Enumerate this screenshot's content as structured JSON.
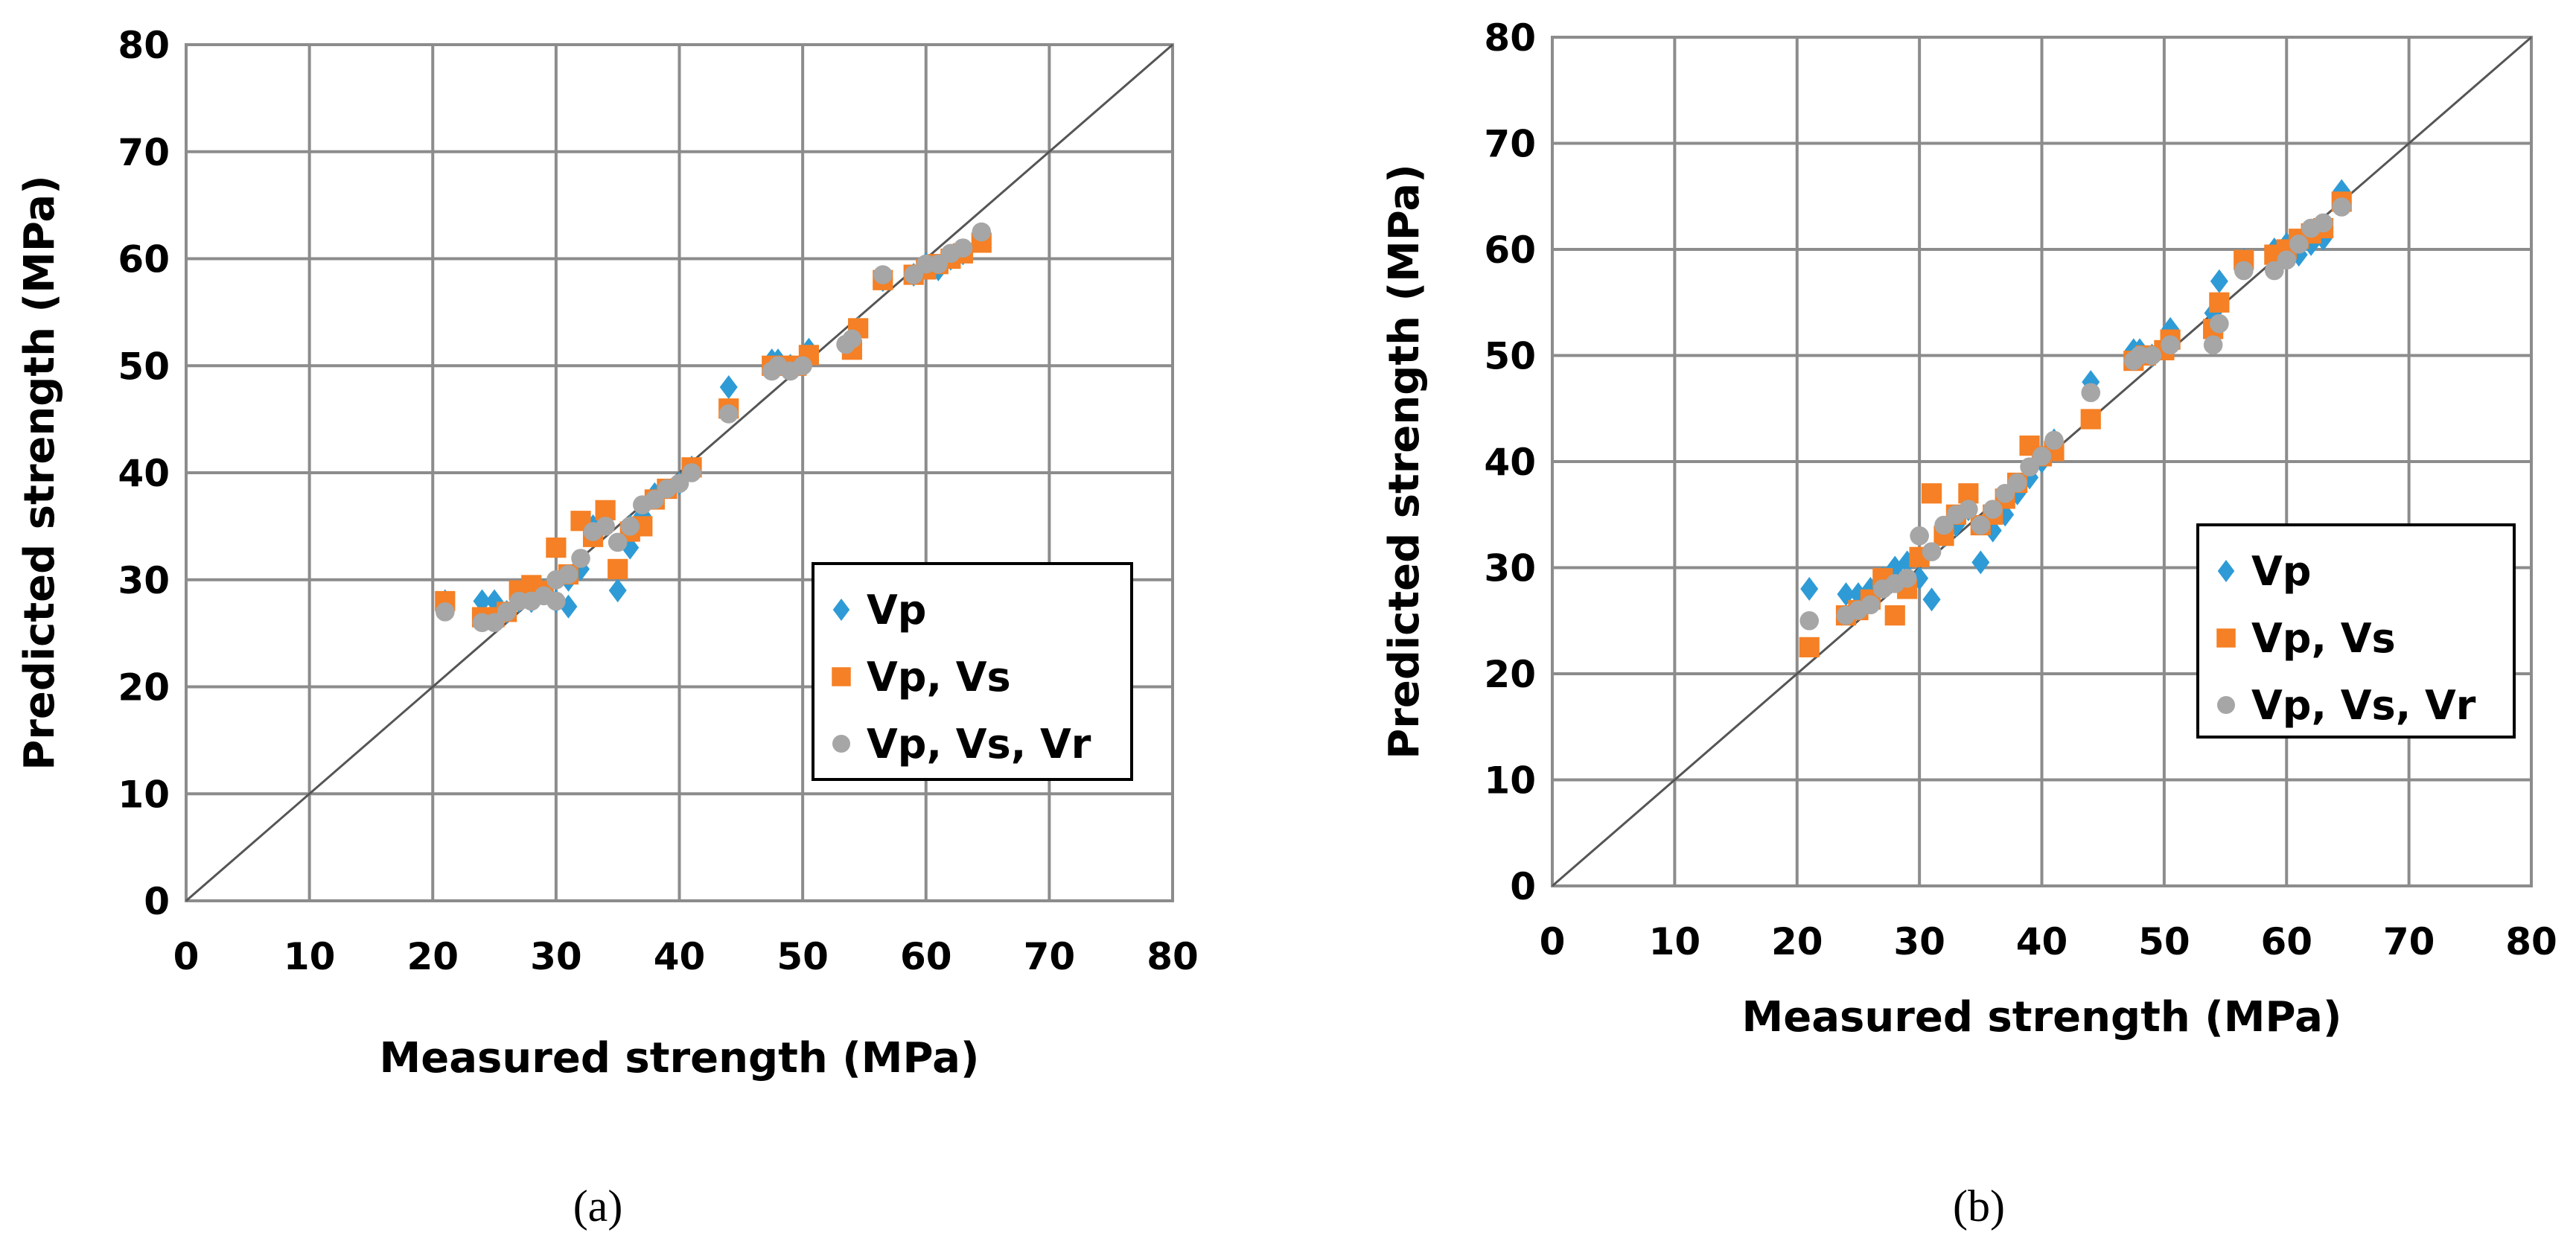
{
  "chart_data": [
    {
      "type": "scatter",
      "panel_label": "(a)",
      "title": "",
      "xlabel": "Measured strength (MPa)",
      "ylabel": "Predicted strength (MPa)",
      "xlim": [
        0,
        80
      ],
      "ylim": [
        0,
        80
      ],
      "ticks": [
        0,
        10,
        20,
        30,
        40,
        50,
        60,
        70,
        80
      ],
      "grid": true,
      "reference_line": "y = x",
      "legend_position": "center-right",
      "series": [
        {
          "name": "Vp",
          "marker": "diamond",
          "color": "#2E9BD6",
          "points": [
            [
              21,
              28
            ],
            [
              24,
              28
            ],
            [
              25,
              28
            ],
            [
              26,
              27
            ],
            [
              27,
              28
            ],
            [
              28,
              28
            ],
            [
              29,
              29
            ],
            [
              30,
              28
            ],
            [
              31,
              27.5
            ],
            [
              31,
              30
            ],
            [
              32,
              31
            ],
            [
              33,
              35
            ],
            [
              34,
              36
            ],
            [
              35,
              29
            ],
            [
              36,
              33
            ],
            [
              36,
              35
            ],
            [
              37,
              36
            ],
            [
              38,
              38
            ],
            [
              40,
              39
            ],
            [
              41,
              40.5
            ],
            [
              44,
              48
            ],
            [
              47.5,
              50.5
            ],
            [
              48,
              50.5
            ],
            [
              49,
              50
            ],
            [
              50.5,
              51.5
            ],
            [
              54,
              52.5
            ],
            [
              54.5,
              53.5
            ],
            [
              56.5,
              58
            ],
            [
              59,
              58.5
            ],
            [
              60,
              59.5
            ],
            [
              61,
              59
            ],
            [
              62,
              60
            ],
            [
              63,
              60.5
            ],
            [
              64.5,
              62
            ]
          ]
        },
        {
          "name": "Vp, Vs",
          "marker": "square",
          "color": "#F58025",
          "points": [
            [
              21,
              28
            ],
            [
              24,
              26.5
            ],
            [
              25,
              26.5
            ],
            [
              26,
              27
            ],
            [
              27,
              29
            ],
            [
              28,
              29.5
            ],
            [
              29,
              29
            ],
            [
              30,
              33
            ],
            [
              31,
              30.5
            ],
            [
              32,
              35.5
            ],
            [
              33,
              34
            ],
            [
              34,
              36.5
            ],
            [
              35,
              31
            ],
            [
              36,
              34.5
            ],
            [
              37,
              35
            ],
            [
              38,
              37.5
            ],
            [
              39,
              38.5
            ],
            [
              41,
              40.5
            ],
            [
              44,
              46
            ],
            [
              47.5,
              50
            ],
            [
              48.5,
              50
            ],
            [
              49.5,
              50
            ],
            [
              50.5,
              51
            ],
            [
              54,
              51.5
            ],
            [
              54.5,
              53.5
            ],
            [
              56.5,
              58
            ],
            [
              59,
              58.5
            ],
            [
              60,
              59
            ],
            [
              61,
              59.5
            ],
            [
              62,
              60
            ],
            [
              63,
              60.5
            ],
            [
              64.5,
              61.5
            ]
          ]
        },
        {
          "name": "Vp, Vs, Vr",
          "marker": "circle",
          "color": "#A6A6A6",
          "points": [
            [
              21,
              27
            ],
            [
              24,
              26
            ],
            [
              25,
              26
            ],
            [
              26,
              27
            ],
            [
              27,
              28
            ],
            [
              28,
              28
            ],
            [
              29,
              28.5
            ],
            [
              30,
              28
            ],
            [
              30,
              30
            ],
            [
              31,
              30.5
            ],
            [
              32,
              32
            ],
            [
              33,
              34.5
            ],
            [
              34,
              35
            ],
            [
              35,
              33.5
            ],
            [
              36,
              35
            ],
            [
              37,
              37
            ],
            [
              38,
              37.5
            ],
            [
              39,
              38.5
            ],
            [
              40,
              39
            ],
            [
              41,
              40
            ],
            [
              44,
              45.5
            ],
            [
              47.5,
              49.5
            ],
            [
              48,
              50
            ],
            [
              49,
              49.5
            ],
            [
              50,
              50
            ],
            [
              53.5,
              52
            ],
            [
              54,
              52.5
            ],
            [
              56.5,
              58.5
            ],
            [
              59,
              58.5
            ],
            [
              60,
              59.5
            ],
            [
              61,
              59.5
            ],
            [
              62,
              60.5
            ],
            [
              63,
              61
            ],
            [
              64.5,
              62.5
            ]
          ]
        }
      ]
    },
    {
      "type": "scatter",
      "panel_label": "(b)",
      "title": "",
      "xlabel": "Measured strength (MPa)",
      "ylabel": "Predicted strength (MPa)",
      "xlim": [
        0,
        80
      ],
      "ylim": [
        0,
        80
      ],
      "ticks": [
        0,
        10,
        20,
        30,
        40,
        50,
        60,
        70,
        80
      ],
      "grid": true,
      "reference_line": "y = x",
      "legend_position": "center-right",
      "series": [
        {
          "name": "Vp",
          "marker": "diamond",
          "color": "#2E9BD6",
          "points": [
            [
              21,
              28
            ],
            [
              24,
              27.5
            ],
            [
              25,
              27.5
            ],
            [
              26,
              28
            ],
            [
              27,
              29
            ],
            [
              28,
              30
            ],
            [
              29,
              30.5
            ],
            [
              30,
              29
            ],
            [
              31,
              27
            ],
            [
              32,
              33
            ],
            [
              33,
              34
            ],
            [
              34,
              35.5
            ],
            [
              35,
              30.5
            ],
            [
              36,
              33.5
            ],
            [
              37,
              35
            ],
            [
              38,
              37
            ],
            [
              39,
              38.5
            ],
            [
              40,
              40
            ],
            [
              41,
              42
            ],
            [
              44,
              47.5
            ],
            [
              47.5,
              50.5
            ],
            [
              48,
              50.5
            ],
            [
              49,
              50
            ],
            [
              50.5,
              52.5
            ],
            [
              54,
              54
            ],
            [
              54.5,
              57
            ],
            [
              56.5,
              59
            ],
            [
              59,
              60
            ],
            [
              60,
              60.5
            ],
            [
              61,
              59.5
            ],
            [
              62,
              60.5
            ],
            [
              63,
              61
            ],
            [
              64.5,
              65.5
            ]
          ]
        },
        {
          "name": "Vp, Vs",
          "marker": "square",
          "color": "#F58025",
          "points": [
            [
              21,
              22.5
            ],
            [
              24,
              25.5
            ],
            [
              25,
              26
            ],
            [
              26,
              27
            ],
            [
              27,
              29
            ],
            [
              28,
              25.5
            ],
            [
              29,
              28
            ],
            [
              30,
              31
            ],
            [
              31,
              37
            ],
            [
              32,
              33
            ],
            [
              33,
              35
            ],
            [
              34,
              37
            ],
            [
              35,
              34
            ],
            [
              36,
              35
            ],
            [
              37,
              36.5
            ],
            [
              38,
              38
            ],
            [
              39,
              41.5
            ],
            [
              40,
              40.5
            ],
            [
              41,
              41
            ],
            [
              44,
              44
            ],
            [
              47.5,
              49.5
            ],
            [
              48.5,
              50
            ],
            [
              50,
              50.5
            ],
            [
              50.5,
              51.5
            ],
            [
              54,
              52.5
            ],
            [
              54.5,
              55
            ],
            [
              56.5,
              59
            ],
            [
              59,
              59.5
            ],
            [
              60,
              60
            ],
            [
              61,
              61
            ],
            [
              62,
              61.5
            ],
            [
              63,
              62
            ],
            [
              64.5,
              64.5
            ]
          ]
        },
        {
          "name": "Vp, Vs, Vr",
          "marker": "circle",
          "color": "#A6A6A6",
          "points": [
            [
              21,
              25
            ],
            [
              24,
              25.5
            ],
            [
              25,
              26
            ],
            [
              26,
              26.5
            ],
            [
              27,
              28
            ],
            [
              28,
              28.5
            ],
            [
              29,
              29
            ],
            [
              30,
              33
            ],
            [
              31,
              31.5
            ],
            [
              32,
              34
            ],
            [
              33,
              35
            ],
            [
              34,
              35.5
            ],
            [
              35,
              34
            ],
            [
              36,
              35.5
            ],
            [
              37,
              37
            ],
            [
              38,
              38
            ],
            [
              39,
              39.5
            ],
            [
              40,
              40.5
            ],
            [
              41,
              42
            ],
            [
              44,
              46.5
            ],
            [
              47.5,
              49.5
            ],
            [
              48,
              50
            ],
            [
              49,
              50
            ],
            [
              50.5,
              51
            ],
            [
              54,
              51
            ],
            [
              54.5,
              53
            ],
            [
              56.5,
              58
            ],
            [
              59,
              58
            ],
            [
              60,
              59
            ],
            [
              61,
              60.5
            ],
            [
              62,
              62
            ],
            [
              63,
              62.5
            ],
            [
              64.5,
              64
            ]
          ]
        }
      ]
    }
  ]
}
